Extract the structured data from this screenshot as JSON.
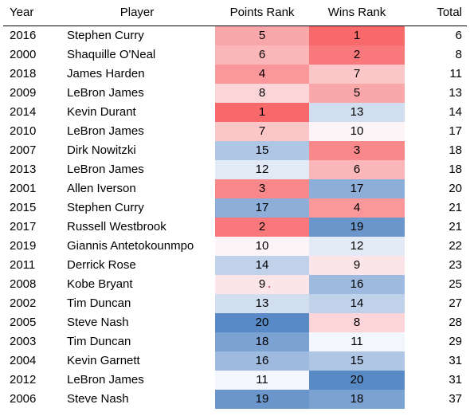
{
  "table": {
    "headers": {
      "year": "Year",
      "player": "Player",
      "points_rank": "Points Rank",
      "wins_rank": "Wins Rank",
      "total": "Total"
    },
    "rows": [
      {
        "year": "2016",
        "player": "Stephen Curry",
        "points_rank": 5,
        "wins_rank": 1,
        "total": 6
      },
      {
        "year": "2000",
        "player": "Shaquille O'Neal",
        "points_rank": 6,
        "wins_rank": 2,
        "total": 8
      },
      {
        "year": "2018",
        "player": "James Harden",
        "points_rank": 4,
        "wins_rank": 7,
        "total": 11
      },
      {
        "year": "2009",
        "player": "LeBron James",
        "points_rank": 8,
        "wins_rank": 5,
        "total": 13
      },
      {
        "year": "2014",
        "player": "Kevin Durant",
        "points_rank": 1,
        "wins_rank": 13,
        "total": 14
      },
      {
        "year": "2010",
        "player": "LeBron James",
        "points_rank": 7,
        "wins_rank": 10,
        "total": 17
      },
      {
        "year": "2007",
        "player": "Dirk Nowitzki",
        "points_rank": 15,
        "wins_rank": 3,
        "total": 18
      },
      {
        "year": "2013",
        "player": "LeBron James",
        "points_rank": 12,
        "wins_rank": 6,
        "total": 18
      },
      {
        "year": "2001",
        "player": "Allen Iverson",
        "points_rank": 3,
        "wins_rank": 17,
        "total": 20
      },
      {
        "year": "2015",
        "player": "Stephen Curry",
        "points_rank": 17,
        "wins_rank": 4,
        "total": 21
      },
      {
        "year": "2017",
        "player": "Russell Westbrook",
        "points_rank": 2,
        "wins_rank": 19,
        "total": 21
      },
      {
        "year": "2019",
        "player": "Giannis Antetokounmpo",
        "points_rank": 10,
        "wins_rank": 12,
        "total": 22
      },
      {
        "year": "2011",
        "player": "Derrick Rose",
        "points_rank": 14,
        "wins_rank": 9,
        "total": 23
      },
      {
        "year": "2008",
        "player": "Kobe Bryant",
        "points_rank": 9,
        "wins_rank": 16,
        "total": 25
      },
      {
        "year": "2002",
        "player": "Tim Duncan",
        "points_rank": 13,
        "wins_rank": 14,
        "total": 27
      },
      {
        "year": "2005",
        "player": "Steve Nash",
        "points_rank": 20,
        "wins_rank": 8,
        "total": 28
      },
      {
        "year": "2003",
        "player": "Tim Duncan",
        "points_rank": 18,
        "wins_rank": 11,
        "total": 29
      },
      {
        "year": "2004",
        "player": "Kevin Garnett",
        "points_rank": 16,
        "wins_rank": 15,
        "total": 31
      },
      {
        "year": "2012",
        "player": "LeBron James",
        "points_rank": 11,
        "wins_rank": 20,
        "total": 31
      },
      {
        "year": "2006",
        "player": "Steve Nash",
        "points_rank": 19,
        "wins_rank": 18,
        "total": 37
      }
    ]
  },
  "heatmap": {
    "low_color": "#f8696b",
    "mid_color": "#fcfcff",
    "high_color": "#5a8ac6",
    "min": 1,
    "max": 20
  }
}
